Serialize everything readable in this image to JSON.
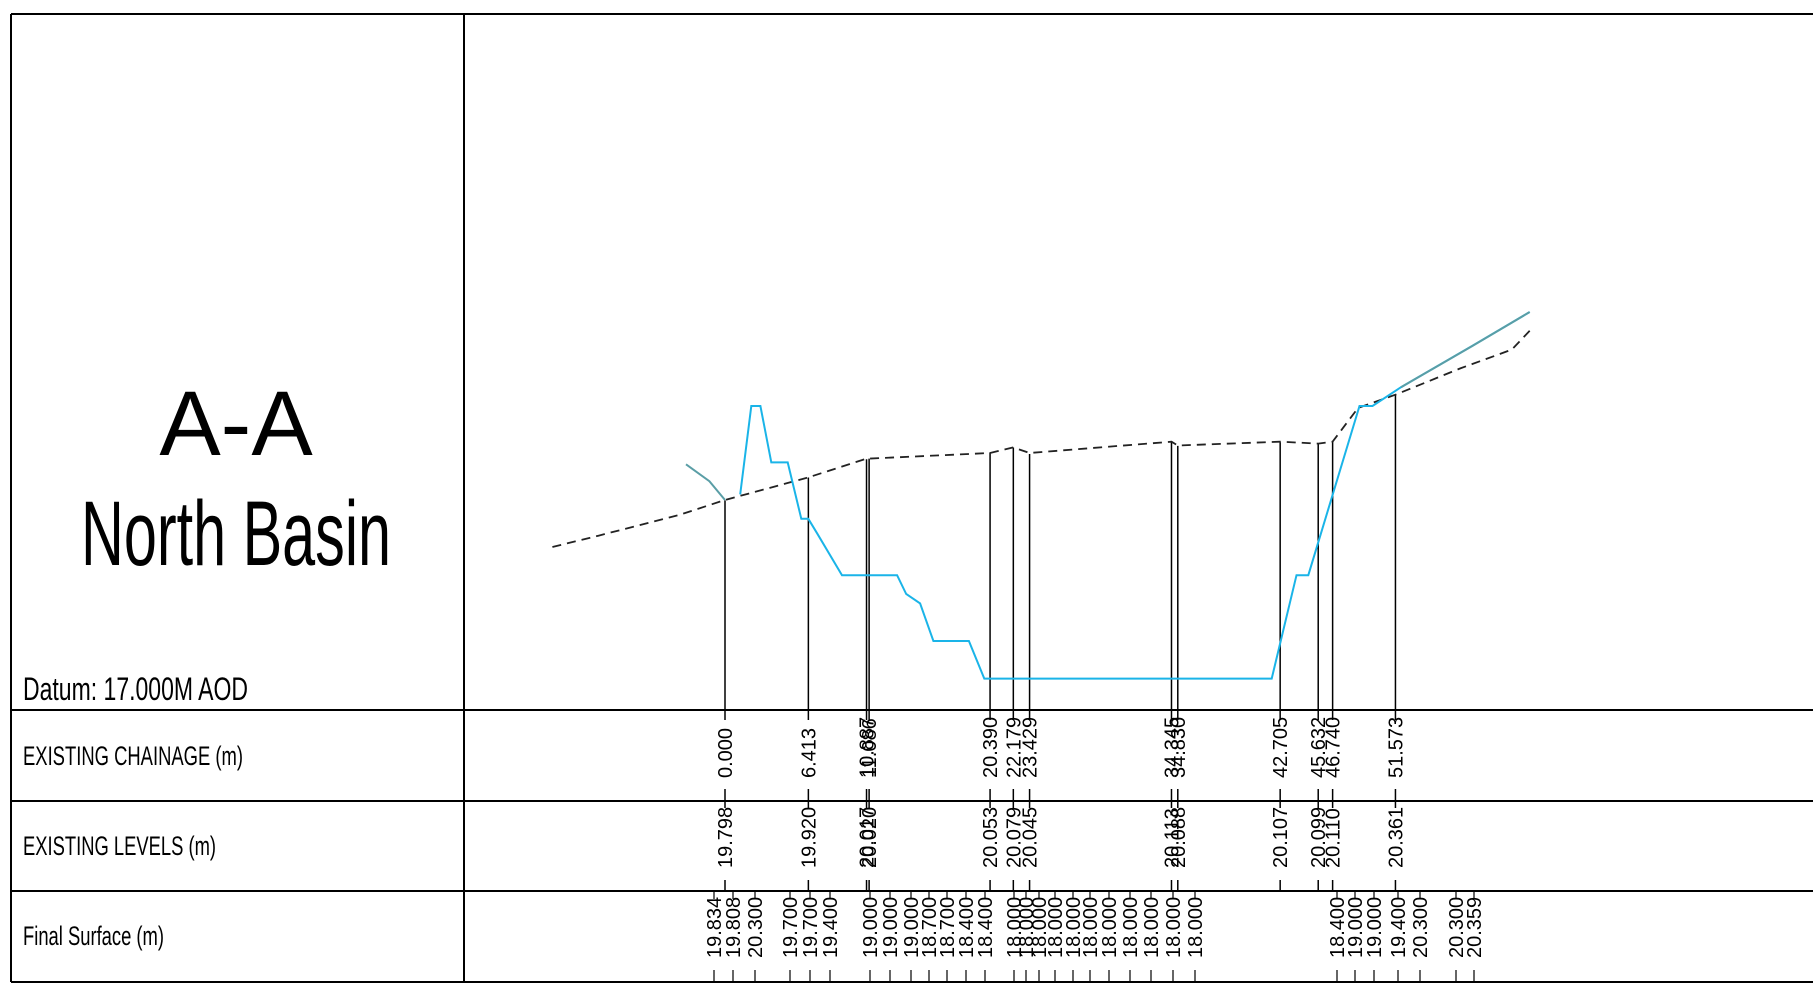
{
  "section": {
    "title_line1": "A-A",
    "title_line2": "North Basin",
    "datum": "Datum: 17.000M AOD"
  },
  "rows": {
    "chainage_label": "EXISTING CHAINAGE (m)",
    "levels_label": "EXISTING LEVELS (m)",
    "final_label": "Final Surface (m)"
  },
  "chart_data": {
    "type": "line",
    "datum_level": 17.0,
    "xlabel": "EXISTING CHAINAGE (m)",
    "ylabel": "",
    "series": [
      {
        "name": "EXISTING LEVELS (m)",
        "style": "dashed",
        "color": "#222222"
      },
      {
        "name": "Final Surface (m)",
        "style": "solid",
        "color": "#1ab4e8"
      }
    ],
    "existing_stations": [
      {
        "chainage": "0.000",
        "level": "19.798"
      },
      {
        "chainage": "6.413",
        "level": "19.920"
      },
      {
        "chainage": "10.887",
        "level": "20.017"
      },
      {
        "chainage": "11.086",
        "level": "20.020"
      },
      {
        "chainage": "20.390",
        "level": "20.053"
      },
      {
        "chainage": "22.179",
        "level": "20.079"
      },
      {
        "chainage": "23.429",
        "level": "20.045"
      },
      {
        "chainage": "34.345",
        "level": "20.113"
      },
      {
        "chainage": "34.830",
        "level": "20.088"
      },
      {
        "chainage": "42.705",
        "level": "20.107"
      },
      {
        "chainage": "45.632",
        "level": "20.099"
      },
      {
        "chainage": "46.740",
        "level": "20.110"
      },
      {
        "chainage": "51.573",
        "level": "20.361"
      }
    ],
    "final_surface_labels": [
      "19.834",
      "19.808",
      "20.300",
      "19.700",
      "19.700",
      "19.400",
      "19.000",
      "19.000",
      "19.000",
      "18.700",
      "18.700",
      "18.400",
      "18.400",
      "18.000",
      "18.000",
      "18.000",
      "18.000",
      "18.000",
      "18.000",
      "18.000",
      "18.000",
      "18.000",
      "18.000",
      "18.000",
      "18.400",
      "19.000",
      "19.000",
      "19.400",
      "20.300",
      "20.300",
      "20.359"
    ],
    "final_surface_profile": [
      [
        1.17,
        19.83
      ],
      [
        2.02,
        20.3
      ],
      [
        2.72,
        20.3
      ],
      [
        3.56,
        20.0
      ],
      [
        4.82,
        20.0
      ],
      [
        5.87,
        19.7
      ],
      [
        6.41,
        19.7
      ],
      [
        7.11,
        19.62
      ],
      [
        9.0,
        19.4
      ],
      [
        9.85,
        19.4
      ],
      [
        13.24,
        19.4
      ],
      [
        13.94,
        19.3
      ],
      [
        15.01,
        19.25
      ],
      [
        16.03,
        19.05
      ],
      [
        18.76,
        19.05
      ],
      [
        19.95,
        18.85
      ],
      [
        33.66,
        18.85
      ],
      [
        36.62,
        18.85
      ],
      [
        42.05,
        18.85
      ],
      [
        43.96,
        19.4
      ],
      [
        44.87,
        19.4
      ],
      [
        48.81,
        20.3
      ],
      [
        49.81,
        20.3
      ],
      [
        52.0,
        20.4
      ],
      [
        57.5,
        20.62
      ],
      [
        61.9,
        20.8
      ]
    ],
    "existing_profile": [
      [
        -13.28,
        19.55
      ],
      [
        -9.74,
        19.61
      ],
      [
        -3.54,
        19.72
      ],
      [
        0.0,
        19.8
      ],
      [
        6.41,
        19.92
      ],
      [
        10.89,
        20.02
      ],
      [
        11.09,
        20.02
      ],
      [
        20.39,
        20.05
      ],
      [
        22.18,
        20.08
      ],
      [
        23.43,
        20.05
      ],
      [
        34.35,
        20.11
      ],
      [
        34.83,
        20.09
      ],
      [
        42.71,
        20.11
      ],
      [
        45.63,
        20.1
      ],
      [
        46.74,
        20.11
      ],
      [
        48.7,
        20.29
      ],
      [
        51.57,
        20.36
      ],
      [
        56.56,
        20.5
      ],
      [
        60.52,
        20.6
      ],
      [
        61.9,
        20.7
      ]
    ],
    "grid": false
  }
}
